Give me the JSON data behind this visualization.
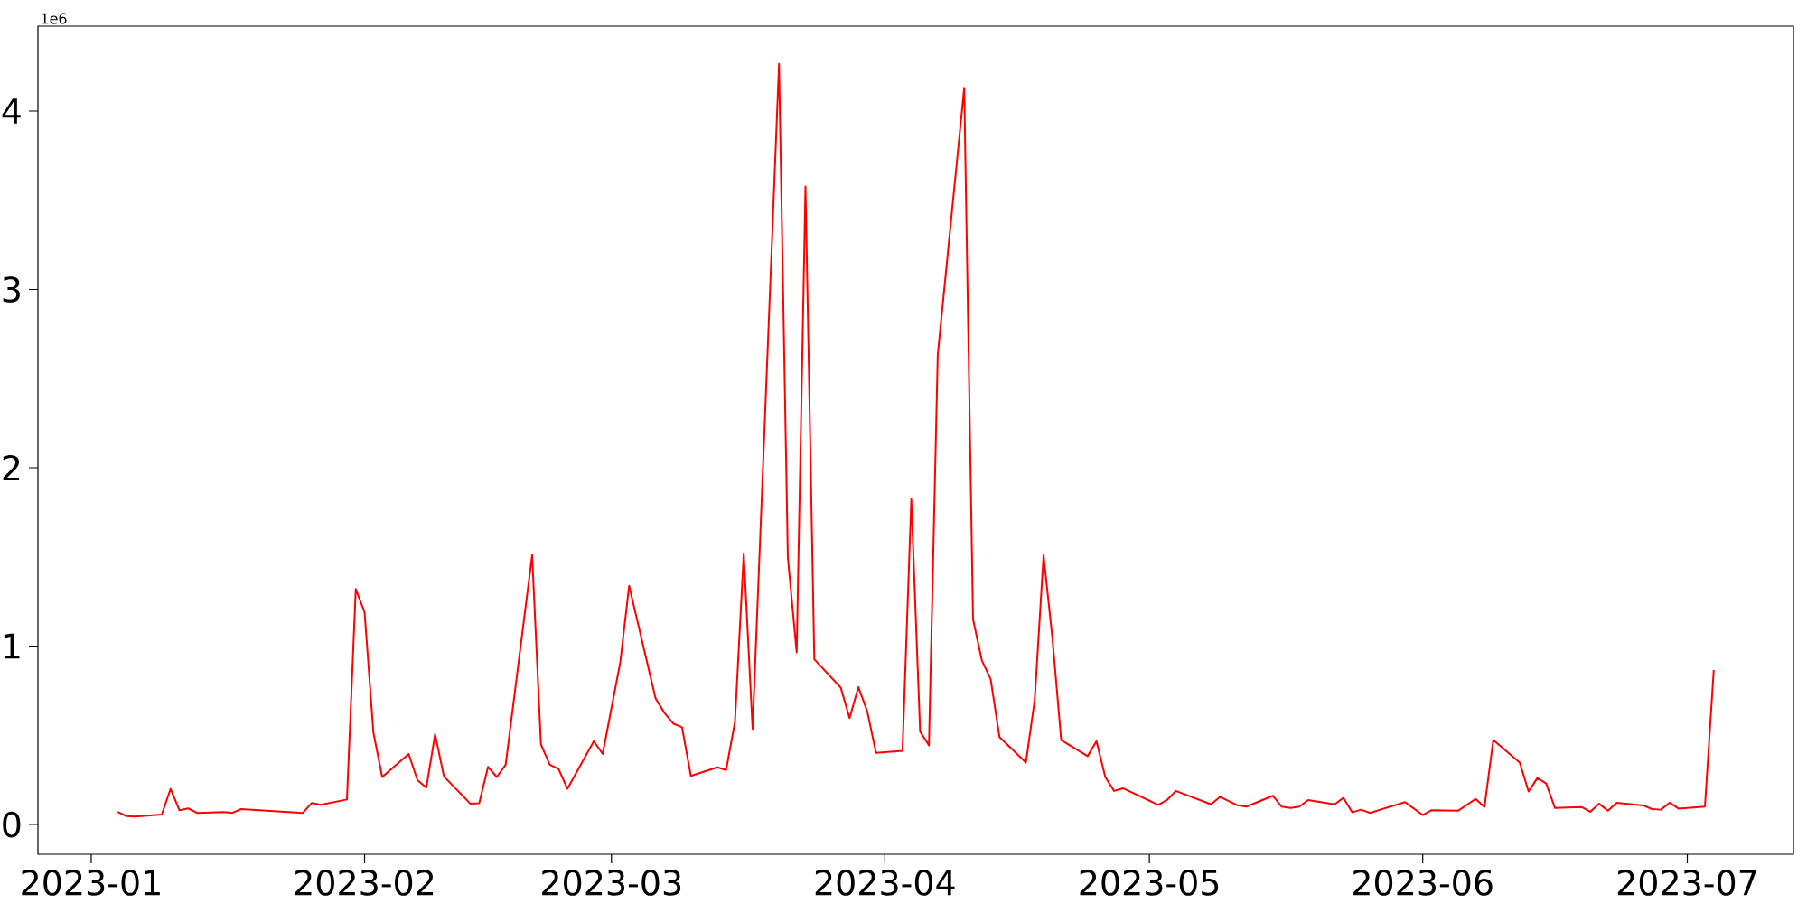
{
  "chart_data": {
    "type": "line",
    "color": "#ff0000",
    "annotations": [
      "1e6"
    ],
    "x": [
      "2023-01-04",
      "2023-01-05",
      "2023-01-06",
      "2023-01-09",
      "2023-01-10",
      "2023-01-11",
      "2023-01-12",
      "2023-01-13",
      "2023-01-16",
      "2023-01-17",
      "2023-01-18",
      "2023-01-25",
      "2023-01-26",
      "2023-01-27",
      "2023-01-30",
      "2023-01-31",
      "2023-02-01",
      "2023-02-02",
      "2023-02-03",
      "2023-02-06",
      "2023-02-07",
      "2023-02-08",
      "2023-02-09",
      "2023-02-10",
      "2023-02-13",
      "2023-02-14",
      "2023-02-15",
      "2023-02-16",
      "2023-02-17",
      "2023-02-20",
      "2023-02-21",
      "2023-02-22",
      "2023-02-23",
      "2023-02-24",
      "2023-02-27",
      "2023-02-28",
      "2023-03-02",
      "2023-03-03",
      "2023-03-06",
      "2023-03-07",
      "2023-03-08",
      "2023-03-09",
      "2023-03-10",
      "2023-03-13",
      "2023-03-14",
      "2023-03-15",
      "2023-03-16",
      "2023-03-17",
      "2023-03-20",
      "2023-03-21",
      "2023-03-22",
      "2023-03-23",
      "2023-03-24",
      "2023-03-27",
      "2023-03-28",
      "2023-03-29",
      "2023-03-30",
      "2023-03-31",
      "2023-04-03",
      "2023-04-04",
      "2023-04-05",
      "2023-04-06",
      "2023-04-07",
      "2023-04-10",
      "2023-04-11",
      "2023-04-12",
      "2023-04-13",
      "2023-04-14",
      "2023-04-17",
      "2023-04-18",
      "2023-04-19",
      "2023-04-20",
      "2023-04-21",
      "2023-04-24",
      "2023-04-25",
      "2023-04-26",
      "2023-04-27",
      "2023-04-28",
      "2023-05-02",
      "2023-05-03",
      "2023-05-04",
      "2023-05-08",
      "2023-05-09",
      "2023-05-10",
      "2023-05-11",
      "2023-05-12",
      "2023-05-15",
      "2023-05-16",
      "2023-05-17",
      "2023-05-18",
      "2023-05-19",
      "2023-05-22",
      "2023-05-23",
      "2023-05-24",
      "2023-05-25",
      "2023-05-26",
      "2023-05-30",
      "2023-06-01",
      "2023-06-02",
      "2023-06-05",
      "2023-06-07",
      "2023-06-08",
      "2023-06-09",
      "2023-06-12",
      "2023-06-13",
      "2023-06-14",
      "2023-06-15",
      "2023-06-16",
      "2023-06-19",
      "2023-06-20",
      "2023-06-21",
      "2023-06-22",
      "2023-06-23",
      "2023-06-26",
      "2023-06-27",
      "2023-06-28",
      "2023-06-29",
      "2023-06-30",
      "2023-07-03",
      "2023-07-04"
    ],
    "values": [
      0.07,
      0.047,
      0.044,
      0.056,
      0.2,
      0.08,
      0.09,
      0.065,
      0.07,
      0.065,
      0.086,
      0.065,
      0.12,
      0.11,
      0.14,
      1.32,
      1.19,
      0.515,
      0.266,
      0.395,
      0.248,
      0.206,
      0.506,
      0.269,
      0.116,
      0.119,
      0.323,
      0.266,
      0.335,
      1.51,
      0.449,
      0.335,
      0.311,
      0.2,
      0.467,
      0.395,
      0.911,
      1.338,
      0.707,
      0.626,
      0.566,
      0.545,
      0.272,
      0.32,
      0.305,
      0.575,
      1.52,
      0.536,
      4.265,
      1.497,
      0.965,
      3.577,
      0.926,
      0.767,
      0.596,
      0.77,
      0.635,
      0.401,
      0.413,
      1.824,
      0.521,
      0.443,
      2.634,
      4.13,
      1.151,
      0.92,
      0.815,
      0.49,
      0.347,
      0.701,
      1.51,
      1.046,
      0.473,
      0.383,
      0.467,
      0.266,
      0.188,
      0.203,
      0.11,
      0.137,
      0.188,
      0.113,
      0.155,
      0.131,
      0.107,
      0.1,
      0.161,
      0.1,
      0.092,
      0.1,
      0.137,
      0.113,
      0.149,
      0.068,
      0.083,
      0.065,
      0.125,
      0.053,
      0.08,
      0.077,
      0.143,
      0.098,
      0.473,
      0.347,
      0.185,
      0.26,
      0.23,
      0.092,
      0.098,
      0.071,
      0.116,
      0.077,
      0.122,
      0.107,
      0.086,
      0.083,
      0.122,
      0.089,
      0.1,
      0.866
    ],
    "xlim": [
      "2022-12-25T23:00",
      "2023-07-13T01:00"
    ],
    "xticks": [
      {
        "value": "2023-01-01",
        "label": "2023-01"
      },
      {
        "value": "2023-02-01",
        "label": "2023-02"
      },
      {
        "value": "2023-03-01",
        "label": "2023-03"
      },
      {
        "value": "2023-04-01",
        "label": "2023-04"
      },
      {
        "value": "2023-05-01",
        "label": "2023-05"
      },
      {
        "value": "2023-06-01",
        "label": "2023-06"
      },
      {
        "value": "2023-07-01",
        "label": "2023-07"
      }
    ],
    "ylim": [
      -0.167,
      4.476
    ],
    "yticks": [
      0,
      1,
      2,
      3,
      4
    ]
  }
}
